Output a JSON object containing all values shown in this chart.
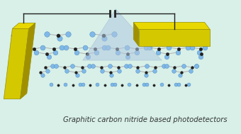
{
  "background_color": "#d8f0e8",
  "title_text": "Graphitic carbon nitride based photodetectors",
  "title_fontsize": 7.2,
  "title_color": "#333333",
  "wire_color": "#222222",
  "capacitor_color": "#222222",
  "light_beam_color": "#b0c8e0",
  "light_beam_alpha": 0.55,
  "node_carbon_color": "#222222",
  "node_nitrogen_color": "#80b8e8",
  "bond_color": "#b0b0b0",
  "electrode_face_color": "#d4c800",
  "electrode_top_color": "#e8d800",
  "electrode_side_color": "#a09000"
}
